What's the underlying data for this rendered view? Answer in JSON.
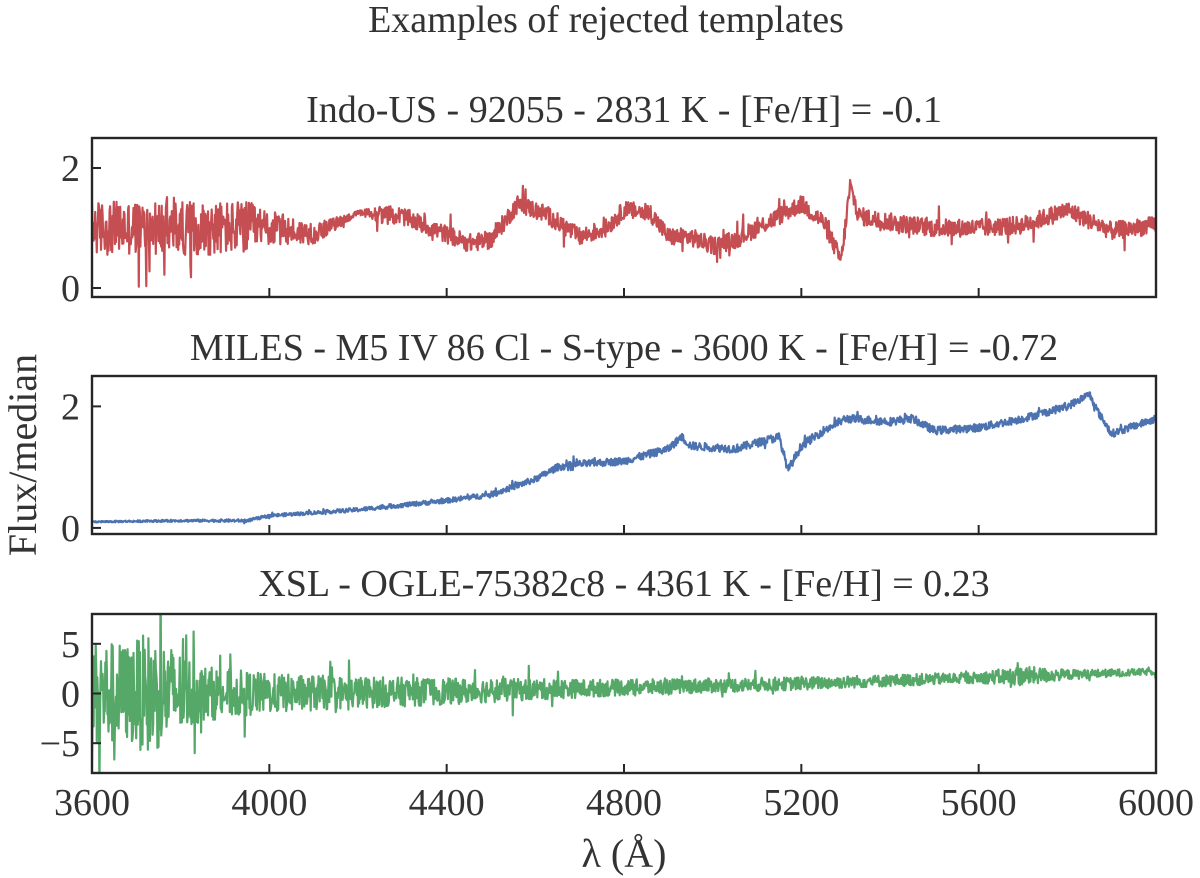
{
  "chart_data": {
    "type": "line",
    "suptitle": "Examples of rejected templates",
    "xlabel": "λ (Å)",
    "ylabel": "Flux/median",
    "xlim": [
      3600,
      6000
    ],
    "xticks": [
      3600,
      4000,
      4400,
      4800,
      5200,
      5600,
      6000
    ],
    "panels": [
      {
        "title": "Indo-US - 92055 - 2831 K - [Fe/H] = -0.1",
        "color": "#c44e52",
        "ylim": [
          -0.15,
          2.5
        ],
        "yticks": [
          0,
          2
        ],
        "noise": [
          [
            3600,
            0.45
          ],
          [
            3950,
            0.45
          ],
          [
            4000,
            0.3
          ],
          [
            4200,
            0.04
          ],
          [
            4250,
            0.15
          ],
          [
            5300,
            0.15
          ],
          [
            6000,
            0.15
          ]
        ],
        "series": [
          {
            "name": "Indo-US 92055",
            "x": [
              3600,
              3750,
              3900,
              4000,
              4100,
              4200,
              4300,
              4380,
              4450,
              4500,
              4560,
              4620,
              4700,
              4760,
              4800,
              4860,
              4900,
              4950,
              5000,
              5050,
              5100,
              5150,
              5200,
              5250,
              5290,
              5310,
              5330,
              5400,
              5500,
              5600,
              5700,
              5800,
              5900,
              6000
            ],
            "y": [
              1.0,
              1.0,
              1.0,
              1.0,
              0.9,
              1.25,
              1.2,
              0.95,
              0.75,
              0.8,
              1.4,
              1.25,
              0.85,
              1.0,
              1.3,
              1.25,
              0.85,
              0.85,
              0.7,
              0.8,
              1.0,
              1.2,
              1.4,
              1.1,
              0.45,
              1.7,
              1.2,
              1.1,
              1.0,
              1.0,
              1.05,
              1.3,
              0.95,
              1.05
            ]
          }
        ]
      },
      {
        "title": "MILES - M5 IV 86 Cl - S-type - 3600 K - [Fe/H] = -0.72",
        "color": "#4c72b0",
        "ylim": [
          -0.1,
          2.5
        ],
        "yticks": [
          0,
          2
        ],
        "noise": [
          [
            3600,
            0.012
          ],
          [
            4000,
            0.025
          ],
          [
            4400,
            0.04
          ],
          [
            4700,
            0.06
          ],
          [
            5200,
            0.07
          ],
          [
            6000,
            0.06
          ]
        ],
        "series": [
          {
            "name": "MILES M5 IV 86 Cl",
            "x": [
              3600,
              3800,
              3950,
              4000,
              4200,
              4400,
              4500,
              4600,
              4650,
              4700,
              4800,
              4900,
              4930,
              4950,
              5050,
              5150,
              5170,
              5200,
              5250,
              5300,
              5400,
              5450,
              5500,
              5600,
              5700,
              5800,
              5850,
              5870,
              5900,
              6000
            ],
            "y": [
              0.1,
              0.12,
              0.12,
              0.2,
              0.3,
              0.45,
              0.55,
              0.8,
              1.0,
              1.05,
              1.1,
              1.3,
              1.5,
              1.35,
              1.3,
              1.5,
              0.95,
              1.35,
              1.6,
              1.8,
              1.75,
              1.8,
              1.6,
              1.65,
              1.8,
              2.0,
              2.2,
              1.9,
              1.55,
              1.8
            ]
          }
        ]
      },
      {
        "title": "XSL - OGLE-75382c8 - 4361 K - [Fe/H] = 0.23",
        "color": "#55a868",
        "ylim": [
          -8,
          8
        ],
        "yticks": [
          -5,
          0,
          5
        ],
        "noise": [
          [
            3600,
            5.5
          ],
          [
            3680,
            5.0
          ],
          [
            3730,
            6.2
          ],
          [
            3850,
            2.8
          ],
          [
            4000,
            2.0
          ],
          [
            4200,
            1.6
          ],
          [
            4500,
            1.2
          ],
          [
            4800,
            0.8
          ],
          [
            5200,
            0.65
          ],
          [
            5600,
            0.55
          ],
          [
            5700,
            1.0
          ],
          [
            5800,
            0.5
          ],
          [
            6000,
            0.3
          ]
        ],
        "series": [
          {
            "name": "XSL OGLE-75382c8",
            "x": [
              3600,
              4000,
              4400,
              4800,
              5200,
              5600,
              6000
            ],
            "y": [
              0.0,
              0.0,
              0.2,
              0.6,
              1.0,
              1.6,
              2.2
            ]
          }
        ]
      }
    ]
  }
}
